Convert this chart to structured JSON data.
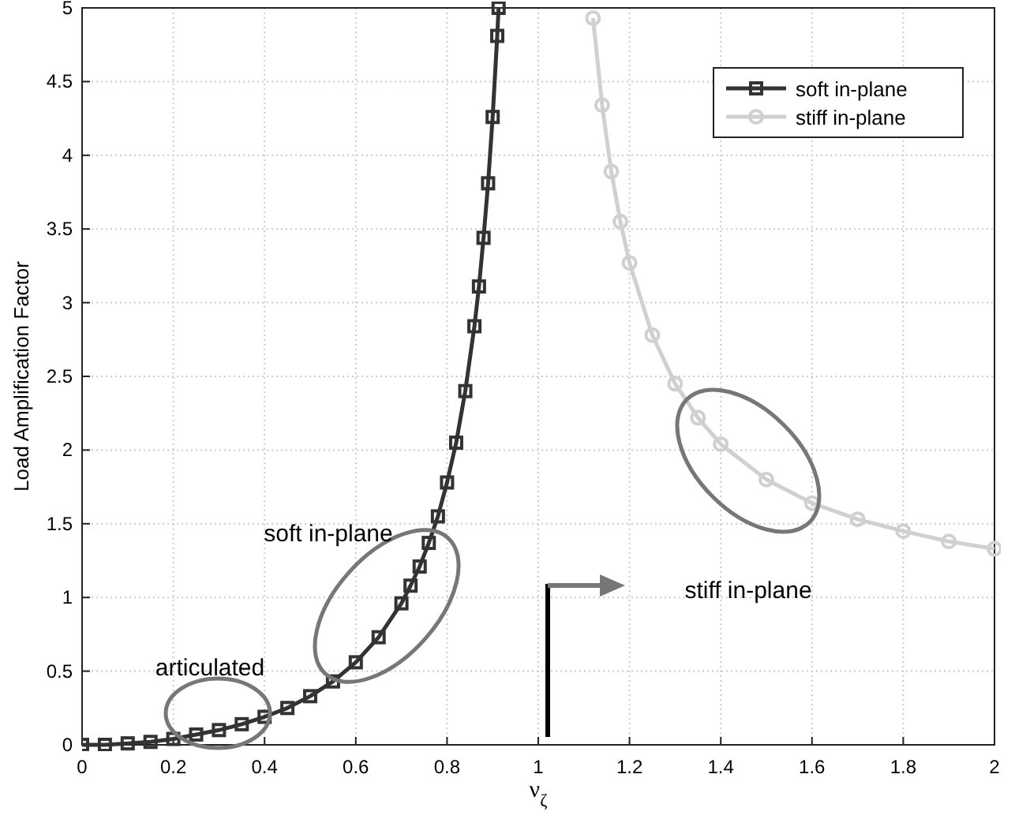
{
  "chart_data": {
    "type": "line",
    "xlabel": "ν$_{ζ}$",
    "ylabel": "Load Amplification Factor",
    "xlim": [
      0,
      2
    ],
    "ylim": [
      0,
      5
    ],
    "xticks": [
      0,
      0.2,
      0.4,
      0.6,
      0.8,
      1,
      1.2,
      1.4,
      1.6,
      1.8,
      2
    ],
    "yticks": [
      0,
      0.5,
      1,
      1.5,
      2,
      2.5,
      3,
      3.5,
      4,
      4.5,
      5
    ],
    "grid": true,
    "legend": "top right",
    "series": [
      {
        "name": "soft in-plane",
        "color": "#333333",
        "marker": "square",
        "x": [
          0,
          0.05,
          0.1,
          0.15,
          0.2,
          0.25,
          0.3,
          0.35,
          0.4,
          0.45,
          0.5,
          0.55,
          0.6,
          0.65,
          0.7,
          0.72,
          0.74,
          0.76,
          0.78,
          0.8,
          0.82,
          0.84,
          0.86,
          0.87,
          0.88,
          0.89,
          0.9,
          0.91,
          0.913
        ],
        "values": [
          0,
          0,
          0.01,
          0.02,
          0.04,
          0.07,
          0.1,
          0.14,
          0.19,
          0.25,
          0.33,
          0.43,
          0.56,
          0.73,
          0.96,
          1.08,
          1.21,
          1.37,
          1.55,
          1.78,
          2.05,
          2.4,
          2.84,
          3.11,
          3.44,
          3.81,
          4.26,
          4.81,
          5
        ]
      },
      {
        "name": "stiff in-plane",
        "color": "#d0d0d0",
        "marker": "circle",
        "x": [
          1.12,
          1.14,
          1.16,
          1.18,
          1.2,
          1.25,
          1.3,
          1.35,
          1.4,
          1.5,
          1.6,
          1.7,
          1.8,
          1.9,
          2
        ],
        "values": [
          4.93,
          4.34,
          3.89,
          3.55,
          3.27,
          2.78,
          2.45,
          2.22,
          2.04,
          1.8,
          1.64,
          1.53,
          1.45,
          1.38,
          1.33
        ]
      }
    ],
    "annotations": [
      "articulated",
      "soft in-plane",
      "stiff in-plane"
    ]
  }
}
